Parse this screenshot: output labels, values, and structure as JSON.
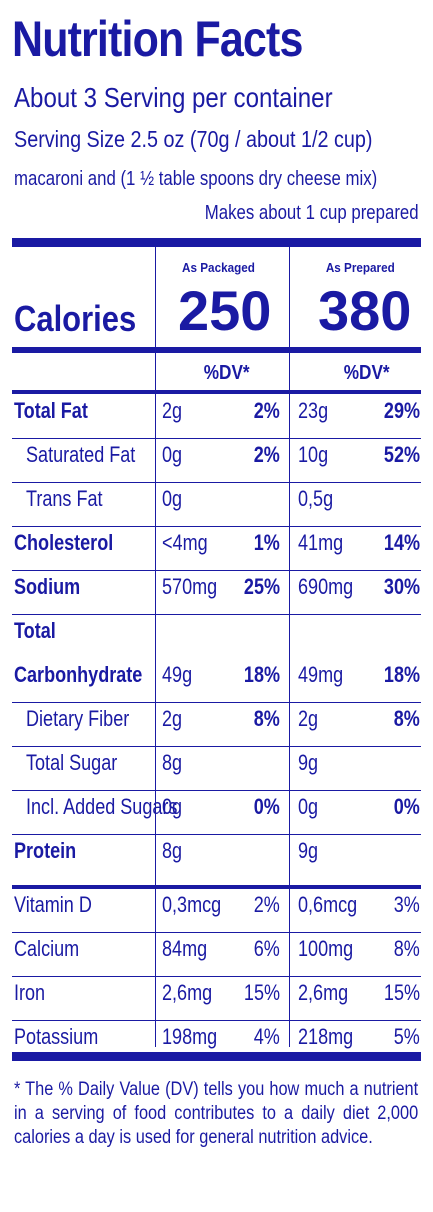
{
  "title": "Nutrition Facts",
  "servings": "About 3 Serving per container",
  "serving_size": "Serving Size 2.5 oz (70g / about 1/2 cup)",
  "serving_desc": "macaroni and (1 ½ table spoons dry cheese mix)",
  "makes": "Makes about 1 cup prepared",
  "col_packaged": "As Packaged",
  "col_prepared": "As Prepared",
  "calories_label": "Calories",
  "calories_packaged": "250",
  "calories_prepared": "380",
  "dv_header": "%DV*",
  "rows": [
    {
      "label": "Total Fat",
      "p_amt": "2g",
      "p_pct": "2%",
      "r_amt": "23g",
      "r_pct": "29%"
    },
    {
      "label": "Saturated Fat",
      "p_amt": "0g",
      "p_pct": "2%",
      "r_amt": "10g",
      "r_pct": "52%"
    },
    {
      "label": "Trans Fat",
      "p_amt": "0g",
      "p_pct": "",
      "r_amt": "0,5g",
      "r_pct": ""
    },
    {
      "label": "Cholesterol",
      "p_amt": "<4mg",
      "p_pct": "1%",
      "r_amt": "41mg",
      "r_pct": "14%"
    },
    {
      "label": "Sodium",
      "p_amt": "570mg",
      "p_pct": "25%",
      "r_amt": "690mg",
      "r_pct": "30%"
    },
    {
      "label": "Total",
      "p_amt": "",
      "p_pct": "",
      "r_amt": "",
      "r_pct": ""
    },
    {
      "label": "Carbonhydrate",
      "p_amt": "49g",
      "p_pct": "18%",
      "r_amt": "49mg",
      "r_pct": "18%"
    },
    {
      "label": "Dietary Fiber",
      "p_amt": "2g",
      "p_pct": "8%",
      "r_amt": "2g",
      "r_pct": "8%"
    },
    {
      "label": "Total Sugar",
      "p_amt": "8g",
      "p_pct": "",
      "r_amt": "9g",
      "r_pct": ""
    },
    {
      "label": "Incl. Added Sugars",
      "p_amt": "0g",
      "p_pct": "0%",
      "r_amt": "0g",
      "r_pct": "0%"
    },
    {
      "label": "Protein",
      "p_amt": "8g",
      "p_pct": "",
      "r_amt": "9g",
      "r_pct": ""
    },
    {
      "label": "Vitamin D",
      "p_amt": "0,3mcg",
      "p_pct": "2%",
      "r_amt": "0,6mcg",
      "r_pct": "3%"
    },
    {
      "label": "Calcium",
      "p_amt": "84mg",
      "p_pct": "6%",
      "r_amt": "100mg",
      "r_pct": "8%"
    },
    {
      "label": "Iron",
      "p_amt": "2,6mg",
      "p_pct": "15%",
      "r_amt": "2,6mg",
      "r_pct": "15%"
    },
    {
      "label": "Potassium",
      "p_amt": "198mg",
      "p_pct": "4%",
      "r_amt": "218mg",
      "r_pct": "5%"
    }
  ],
  "footnote": "* The % Daily Value (DV) tells you how much a nutrient in a serving of food contributes to a daily diet 2,000 calories a day is used for general nutrition advice.",
  "colors": {
    "ink": "#1a1aa3",
    "background": "#ffffff"
  }
}
